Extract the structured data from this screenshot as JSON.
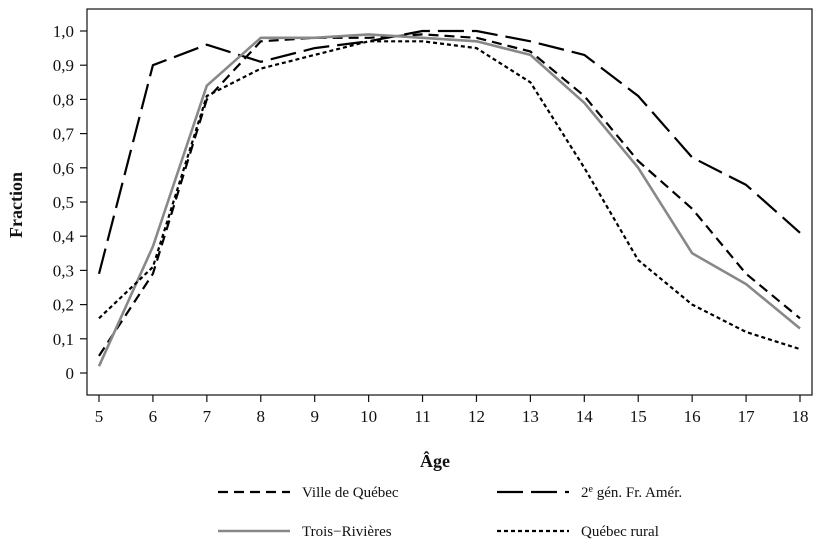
{
  "chart_data": {
    "type": "line",
    "xlabel": "Âge",
    "ylabel": "Fraction",
    "xlim": [
      5,
      18
    ],
    "ylim": [
      0,
      1.0
    ],
    "x_ticks": [
      "5",
      "6",
      "7",
      "8",
      "9",
      "10",
      "11",
      "12",
      "13",
      "14",
      "15",
      "16",
      "17",
      "18"
    ],
    "y_ticks": [
      "0",
      "0,1",
      "0,2",
      "0,3",
      "0,4",
      "0,5",
      "0,6",
      "0,7",
      "0,8",
      "0,9",
      "1,0"
    ],
    "grid": false,
    "legend_position": "bottom",
    "x": [
      5,
      6,
      7,
      8,
      9,
      10,
      11,
      12,
      13,
      14,
      15,
      16,
      17,
      18
    ],
    "series": [
      {
        "name": "Ville de Québec",
        "color": "#000000",
        "dash": "dashed",
        "values": [
          0.05,
          0.29,
          0.8,
          0.97,
          0.98,
          0.98,
          0.99,
          0.98,
          0.94,
          0.81,
          0.62,
          0.48,
          0.29,
          0.16
        ]
      },
      {
        "name_prefix": "2",
        "name_sup": "e",
        "name_rest": " gén. Fr. Amér.",
        "color": "#000000",
        "dash": "longdash",
        "values": [
          0.29,
          0.9,
          0.96,
          0.91,
          0.95,
          0.97,
          1.0,
          1.0,
          0.97,
          0.93,
          0.81,
          0.63,
          0.55,
          0.41
        ]
      },
      {
        "name": "Trois−Rivières",
        "color": "#888888",
        "dash": "solid",
        "values": [
          0.02,
          0.37,
          0.84,
          0.98,
          0.98,
          0.99,
          0.98,
          0.97,
          0.93,
          0.79,
          0.6,
          0.35,
          0.26,
          0.13
        ]
      },
      {
        "name": "Québec rural",
        "color": "#000000",
        "dash": "dotted",
        "values": [
          0.16,
          0.31,
          0.81,
          0.89,
          0.93,
          0.97,
          0.97,
          0.95,
          0.85,
          0.6,
          0.33,
          0.2,
          0.12,
          0.07
        ]
      }
    ]
  }
}
